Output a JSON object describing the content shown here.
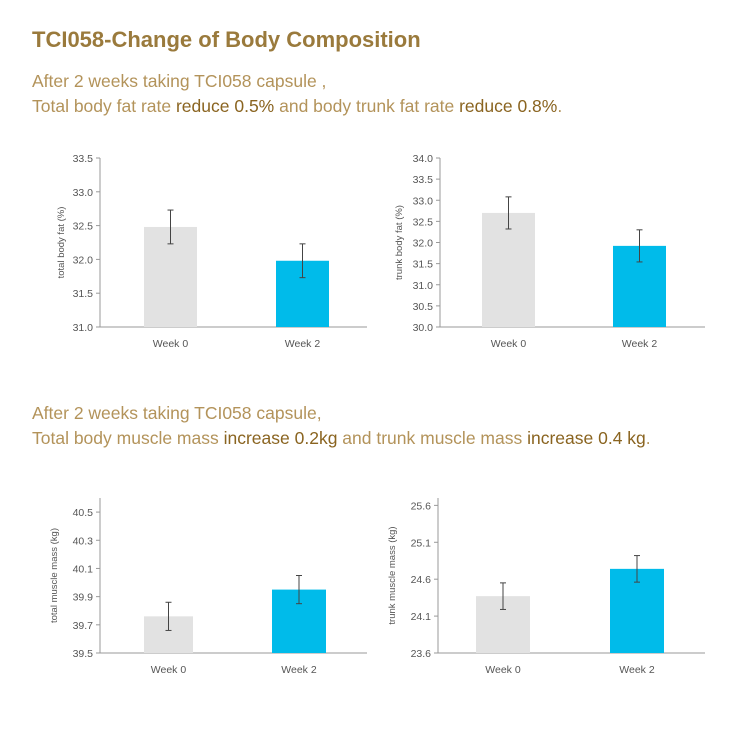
{
  "header": {
    "title": "TCI058-Change of Body Composition",
    "fat_line1": "After 2 weeks taking TCI058 capsule ,",
    "fat_line2_a": "Total body fat rate ",
    "fat_line2_b": "reduce 0.5%",
    "fat_line2_c": " and body trunk fat rate ",
    "fat_line2_d": "reduce 0.8%",
    "fat_line2_e": ".",
    "muscle_line1": "After 2 weeks taking TCI058 capsule,",
    "muscle_line2_a": "Total body muscle mass ",
    "muscle_line2_b": "increase 0.2kg",
    "muscle_line2_c": " and trunk muscle mass ",
    "muscle_line2_d": "increase 0.4 kg",
    "muscle_line2_e": "."
  },
  "colors": {
    "week0": "#e2e2e2",
    "week2": "#00bbea",
    "axis": "#999999"
  },
  "chart_data": [
    {
      "type": "bar",
      "ylabel": "total body fat (%)",
      "categories": [
        "Week 0",
        "Week 2"
      ],
      "values": [
        32.48,
        31.98
      ],
      "errors": [
        0.25,
        0.25
      ],
      "ylim": [
        31.0,
        33.5
      ],
      "yticks": [
        "31.0",
        "31.5",
        "32.0",
        "32.5",
        "33.0",
        "33.5"
      ]
    },
    {
      "type": "bar",
      "ylabel": "trunk body fat (%)",
      "categories": [
        "Week 0",
        "Week 2"
      ],
      "values": [
        32.7,
        31.92
      ],
      "errors": [
        0.38,
        0.38
      ],
      "ylim": [
        30.0,
        34.0
      ],
      "yticks": [
        "30.0",
        "30.5",
        "31.0",
        "31.5",
        "32.0",
        "32.5",
        "33.0",
        "33.5",
        "34.0"
      ]
    },
    {
      "type": "bar",
      "ylabel": "total muscle mass (kg)",
      "categories": [
        "Week 0",
        "Week 2"
      ],
      "values": [
        39.76,
        39.95
      ],
      "errors": [
        0.1,
        0.1
      ],
      "ylim": [
        39.5,
        40.6
      ],
      "yticks": [
        "39.5",
        "39.7",
        "39.9",
        "40.1",
        "40.3",
        "40.5"
      ],
      "tickvals": [
        39.5,
        39.7,
        39.9,
        40.1,
        40.3,
        40.5
      ]
    },
    {
      "type": "bar",
      "ylabel": "trunk muscle mass (kg)",
      "categories": [
        "Week 0",
        "Week 2"
      ],
      "values": [
        24.37,
        24.74
      ],
      "errors": [
        0.18,
        0.18
      ],
      "ylim": [
        23.6,
        25.7
      ],
      "yticks": [
        "23.6",
        "24.1",
        "24.6",
        "25.1",
        "25.6"
      ],
      "tickvals": [
        23.6,
        24.1,
        24.6,
        25.1,
        25.6
      ]
    }
  ]
}
